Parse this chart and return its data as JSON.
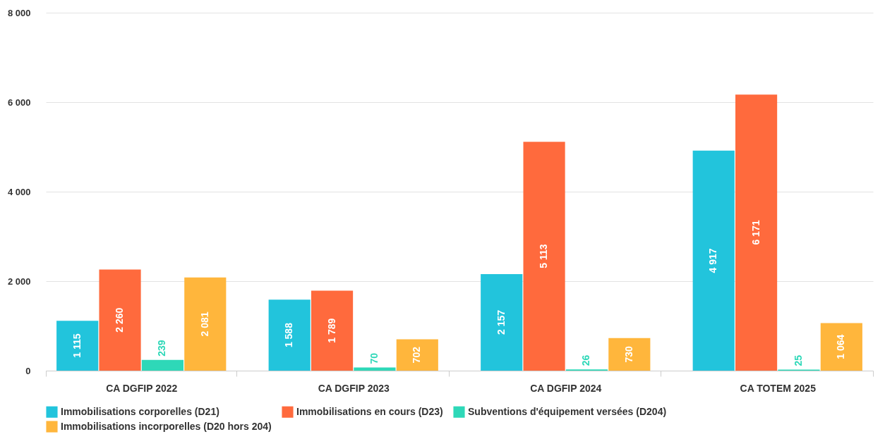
{
  "chart_data": {
    "type": "bar",
    "categories": [
      "CA DGFIP 2022",
      "CA DGFIP 2023",
      "CA DGFIP 2024",
      "CA TOTEM 2025"
    ],
    "series": [
      {
        "name": "Immobilisations corporelles (D21)",
        "color": "#22c4dc",
        "values": [
          1115,
          1588,
          2157,
          4917
        ],
        "value_labels": [
          "1 115",
          "1 588",
          "2 157",
          "4 917"
        ]
      },
      {
        "name": "Immobilisations en cours (D23)",
        "color": "#ff6a3d",
        "values": [
          2260,
          1789,
          5113,
          6171
        ],
        "value_labels": [
          "2 260",
          "1 789",
          "5 113",
          "6 171"
        ]
      },
      {
        "name": "Subventions d'équipement versées (D204)",
        "color": "#2ed8b8",
        "values": [
          239,
          70,
          26,
          25
        ],
        "value_labels": [
          "239",
          "70",
          "26",
          "25"
        ]
      },
      {
        "name": "Immobilisations incorporelles (D20 hors 204)",
        "color": "#ffb63c",
        "values": [
          2081,
          702,
          730,
          1064
        ],
        "value_labels": [
          "2 081",
          "702",
          "730",
          "1 064"
        ]
      }
    ],
    "ylim": [
      0,
      8000
    ],
    "yticks": [
      0,
      {
        "value": 2000,
        "label": "2 000"
      },
      {
        "value": 4000,
        "label": "4 000"
      },
      {
        "value": 6000,
        "label": "6 000"
      },
      {
        "value": 8000,
        "label": "8 000"
      }
    ],
    "grid": "y",
    "legend": "bottom"
  }
}
